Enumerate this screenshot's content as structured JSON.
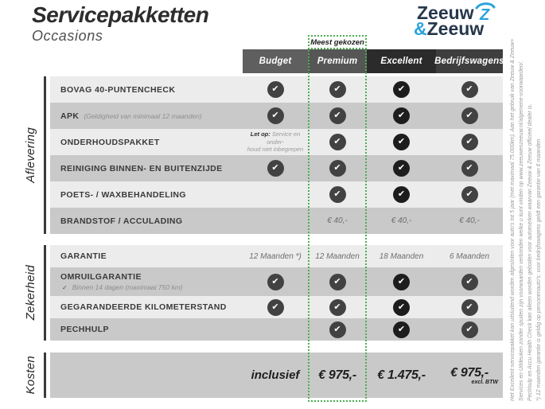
{
  "page": {
    "title": "Servicepakketten",
    "subtitle": "Occasions"
  },
  "logo": {
    "word1": "Zeeuw",
    "amp": "&",
    "word2": "Zeeuw"
  },
  "badge": "Meest gekozen",
  "columns": [
    {
      "label": "Budget",
      "header_color": "#5f5f5f",
      "check_color": "#424242"
    },
    {
      "label": "Premium",
      "header_color": "#565656",
      "check_color": "#424242"
    },
    {
      "label": "Excellent",
      "header_color": "#2b2b2b",
      "check_color": "#1d1d1d"
    },
    {
      "label": "Bedrijfswagens",
      "header_color": "#3e3e3e",
      "check_color": "#424242"
    }
  ],
  "sections": [
    {
      "name": "Aflevering",
      "rows": [
        {
          "label": "BOVAG 40-PUNTENCHECK",
          "cells": [
            "check",
            "check",
            "check",
            "check"
          ]
        },
        {
          "label": "APK",
          "note": "(Geldigheid van minimaal 12 maanden)",
          "cells": [
            "check",
            "check",
            "check",
            "check"
          ]
        },
        {
          "label": "ONDERHOUDSPAKKET",
          "cells": [
            {
              "prefix": "Let op:",
              "lines": [
                "Service en onder-",
                "houd niet inbegrepen"
              ]
            },
            "check",
            "check",
            "check"
          ]
        },
        {
          "label": "REINIGING BINNEN- EN BUITENZIJDE",
          "cells": [
            "check",
            "check",
            "check",
            "check"
          ]
        },
        {
          "label": "POETS- / WAXBEHANDELING",
          "cells": [
            "",
            "check",
            "check",
            "check"
          ]
        },
        {
          "label": "BRANDSTOF / ACCULADING",
          "cells": [
            "",
            "€ 40,-",
            "€ 40,-",
            "€ 40,-"
          ]
        }
      ]
    },
    {
      "name": "Zekerheid",
      "rows": [
        {
          "label": "GARANTIE",
          "cells": [
            "12 Maanden *)",
            "12 Maanden",
            "18 Maanden",
            "6 Maanden"
          ]
        },
        {
          "label": "OMRUILGARANTIE",
          "sub": "Binnen 14 dagen (maximaal 750 km)",
          "cells": [
            "check",
            "check",
            "check",
            "check"
          ]
        },
        {
          "label": "GEGARANDEERDE KILOMETERSTAND",
          "cells": [
            "check",
            "check",
            "check",
            "check"
          ]
        },
        {
          "label": "PECHHULP",
          "cells": [
            "",
            "check",
            "check",
            "check"
          ]
        }
      ]
    },
    {
      "name": "Kosten",
      "rows": [
        {
          "label": "",
          "type": "price",
          "cells": [
            "inclusief",
            "€ 975,-",
            "€ 1.475,-",
            {
              "price": "€ 975,-",
              "note": "excl. BTW"
            }
          ]
        }
      ]
    }
  ],
  "footnotes": [
    "Het Excellent-servicepakket kan uitsluitend worden afgesloten voor auto's tot 5 jaar (met maximaal 75.000km). Aan het gebruik van Zeeuw & Zeeuw+",
    "Services en Uitdeuken zonder spuiten zijn voorwaarden verbonden welke u kunt vinden op www.zeeuwenzeeuw.nl/algemene-voorwaarden/.",
    "Pechhulp en Accu Health Check kan alleen worden geboden voor automerken waarvan Zeeuw & Zeeuw officieel dealer is.",
    "*) 12 maanden garantie is geldig op personenauto's; voor bedrijfswagens geldt een garantie van 6 maanden"
  ],
  "colors": {
    "accent_green": "#4caf50",
    "row_light": "#ececec",
    "row_dark": "#c9c9c9",
    "logo_blue": "#2aa3dc",
    "logo_dark": "#25374b"
  }
}
